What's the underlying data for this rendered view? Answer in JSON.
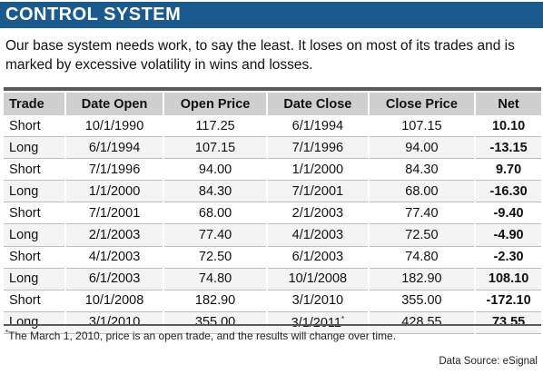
{
  "title": "CONTROL SYSTEM",
  "intro": "Our base system needs work, to say the least. It loses on most of its trades and is marked by excessive volatility in wins and losses.",
  "table": {
    "headers": [
      "Trade",
      "Date Open",
      "Open Price",
      "Date Close",
      "Close Price",
      "Net"
    ],
    "rows": [
      [
        "Short",
        "10/1/1990",
        "117.25",
        "6/1/1994",
        "107.15",
        "10.10"
      ],
      [
        "Long",
        "6/1/1994",
        "107.15",
        "7/1/1996",
        "94.00",
        "-13.15"
      ],
      [
        "Short",
        "7/1/1996",
        "94.00",
        "1/1/2000",
        "84.30",
        "9.70"
      ],
      [
        "Long",
        "1/1/2000",
        "84.30",
        "7/1/2001",
        "68.00",
        "-16.30"
      ],
      [
        "Short",
        "7/1/2001",
        "68.00",
        "2/1/2003",
        "77.40",
        "-9.40"
      ],
      [
        "Long",
        "2/1/2003",
        "77.40",
        "4/1/2003",
        "72.50",
        "-4.90"
      ],
      [
        "Short",
        "4/1/2003",
        "72.50",
        "6/1/2003",
        "74.80",
        "-2.30"
      ],
      [
        "Long",
        "6/1/2003",
        "74.80",
        "10/1/2008",
        "182.90",
        "108.10"
      ],
      [
        "Short",
        "10/1/2008",
        "182.90",
        "3/1/2010",
        "355.00",
        "-172.10"
      ],
      [
        "Long",
        "3/1/2010",
        "355.00",
        "3/1/2011",
        "428.55",
        "73.55"
      ]
    ],
    "last_close_marker": "*"
  },
  "footnote_marker": "*",
  "footnote": "The March 1, 2010, price is an open trade, and the results will change over time.",
  "source": "Data Source: eSignal",
  "colors": {
    "banner": "#1b5a8e",
    "header_row": "#cfcfcf",
    "rule": "#5a5a5a"
  }
}
